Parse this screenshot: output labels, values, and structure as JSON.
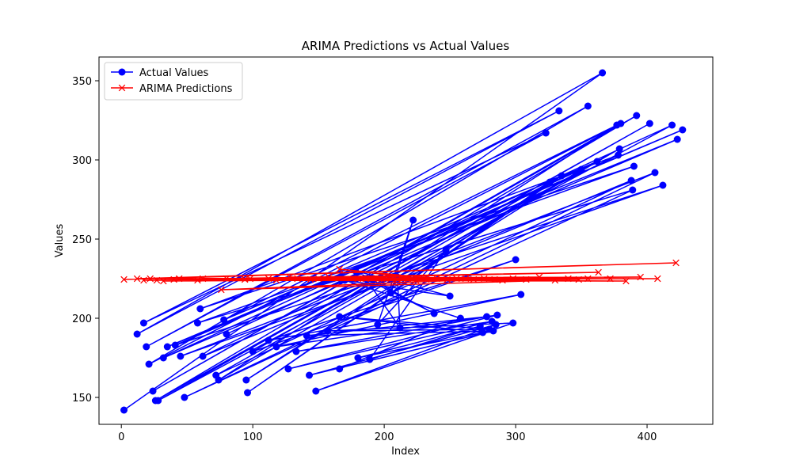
{
  "chart_data": {
    "type": "line",
    "title": "ARIMA Predictions vs Actual Values",
    "xlabel": "Index",
    "ylabel": "Values",
    "xlim": [
      -17,
      450
    ],
    "ylim": [
      133,
      365
    ],
    "xticks": [
      0,
      100,
      200,
      300,
      400
    ],
    "yticks": [
      150,
      200,
      250,
      300,
      350
    ],
    "grid": false,
    "legend_position": "top-left",
    "series": [
      {
        "name": "Actual Values",
        "color": "#0000ff",
        "marker": "circle",
        "x": [
          2,
          366,
          12,
          333,
          17,
          323,
          19,
          355,
          21,
          380,
          24,
          392,
          26,
          402,
          28,
          419,
          32,
          423,
          35,
          427,
          41,
          412,
          45,
          406,
          48,
          389,
          58,
          390,
          60,
          378,
          62,
          388,
          72,
          379,
          74,
          377,
          78,
          362,
          80,
          350,
          95,
          335,
          96,
          326,
          100,
          300,
          112,
          304,
          118,
          286,
          127,
          282,
          133,
          278,
          141,
          283,
          143,
          285,
          148,
          298,
          157,
          280,
          166,
          275,
          180,
          273,
          189,
          247,
          195,
          222,
          205,
          210,
          212,
          186,
          238,
          178,
          250,
          170,
          258,
          166
        ],
        "y": [
          142,
          355,
          190,
          331,
          197,
          317,
          182,
          334,
          171,
          323,
          154,
          328,
          148,
          323,
          148,
          322,
          175,
          313,
          182,
          319,
          183,
          284,
          176,
          292,
          150,
          281,
          197,
          296,
          206,
          303,
          176,
          287,
          164,
          307,
          161,
          322,
          199,
          299,
          190,
          294,
          161,
          290,
          153,
          286,
          179,
          237,
          186,
          215,
          182,
          202,
          168,
          198,
          179,
          201,
          189,
          192,
          164,
          196,
          154,
          197,
          192,
          193,
          201,
          191,
          175,
          195,
          174,
          243,
          196,
          262,
          216,
          226,
          194,
          225,
          203,
          230,
          214,
          224,
          200,
          168
        ]
      },
      {
        "name": "ARIMA Predictions",
        "color": "#ff0000",
        "marker": "x",
        "x": [
          2,
          422,
          12,
          408,
          17,
          395,
          22,
          384,
          27,
          372,
          32,
          363,
          40,
          355,
          44,
          348,
          58,
          340,
          62,
          330,
          76,
          318,
          80,
          308,
          94,
          298,
          98,
          290,
          112,
          284,
          118,
          276,
          128,
          268,
          134,
          262,
          144,
          255,
          150,
          248,
          158,
          240,
          166,
          232,
          180,
          224,
          186,
          210,
          196,
          205,
          198,
          214,
          232,
          218
        ],
        "y": [
          224.5,
          235,
          225,
          225,
          224,
          226,
          225,
          223.5,
          224,
          225,
          223.5,
          229,
          224.5,
          225,
          225,
          224.5,
          224,
          225,
          225,
          224,
          218,
          226,
          225,
          224.5,
          224.5,
          225,
          225,
          224,
          225,
          224.5,
          224,
          225,
          226,
          224.5,
          225,
          225,
          224.5,
          225,
          225,
          224.5,
          226,
          225,
          231,
          224.5,
          225,
          224,
          225,
          224.5,
          225,
          225,
          225,
          225,
          226,
          225
        ]
      }
    ]
  }
}
